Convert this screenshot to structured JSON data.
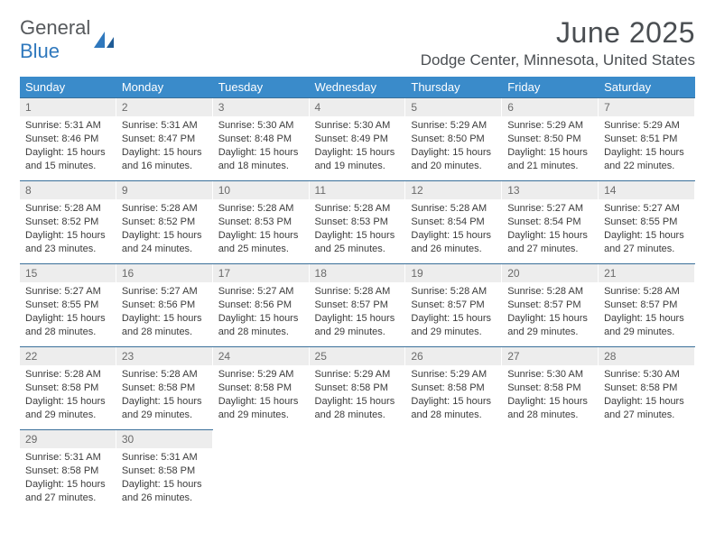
{
  "logo": {
    "text1": "General",
    "text2": "Blue"
  },
  "title": {
    "month": "June 2025",
    "location": "Dodge Center, Minnesota, United States"
  },
  "colors": {
    "header_bg": "#3a8bca",
    "header_text": "#ffffff",
    "row_border": "#3a6f99",
    "daynum_bg": "#ededed",
    "daynum_text": "#6a6a6a",
    "body_text": "#3b3b3b",
    "logo_gray": "#56595c",
    "logo_blue": "#2f78bd",
    "title_text": "#4a4e52"
  },
  "weekdays": [
    "Sunday",
    "Monday",
    "Tuesday",
    "Wednesday",
    "Thursday",
    "Friday",
    "Saturday"
  ],
  "weeks": [
    [
      {
        "num": "1",
        "sunrise": "Sunrise: 5:31 AM",
        "sunset": "Sunset: 8:46 PM",
        "daylight": "Daylight: 15 hours and 15 minutes."
      },
      {
        "num": "2",
        "sunrise": "Sunrise: 5:31 AM",
        "sunset": "Sunset: 8:47 PM",
        "daylight": "Daylight: 15 hours and 16 minutes."
      },
      {
        "num": "3",
        "sunrise": "Sunrise: 5:30 AM",
        "sunset": "Sunset: 8:48 PM",
        "daylight": "Daylight: 15 hours and 18 minutes."
      },
      {
        "num": "4",
        "sunrise": "Sunrise: 5:30 AM",
        "sunset": "Sunset: 8:49 PM",
        "daylight": "Daylight: 15 hours and 19 minutes."
      },
      {
        "num": "5",
        "sunrise": "Sunrise: 5:29 AM",
        "sunset": "Sunset: 8:50 PM",
        "daylight": "Daylight: 15 hours and 20 minutes."
      },
      {
        "num": "6",
        "sunrise": "Sunrise: 5:29 AM",
        "sunset": "Sunset: 8:50 PM",
        "daylight": "Daylight: 15 hours and 21 minutes."
      },
      {
        "num": "7",
        "sunrise": "Sunrise: 5:29 AM",
        "sunset": "Sunset: 8:51 PM",
        "daylight": "Daylight: 15 hours and 22 minutes."
      }
    ],
    [
      {
        "num": "8",
        "sunrise": "Sunrise: 5:28 AM",
        "sunset": "Sunset: 8:52 PM",
        "daylight": "Daylight: 15 hours and 23 minutes."
      },
      {
        "num": "9",
        "sunrise": "Sunrise: 5:28 AM",
        "sunset": "Sunset: 8:52 PM",
        "daylight": "Daylight: 15 hours and 24 minutes."
      },
      {
        "num": "10",
        "sunrise": "Sunrise: 5:28 AM",
        "sunset": "Sunset: 8:53 PM",
        "daylight": "Daylight: 15 hours and 25 minutes."
      },
      {
        "num": "11",
        "sunrise": "Sunrise: 5:28 AM",
        "sunset": "Sunset: 8:53 PM",
        "daylight": "Daylight: 15 hours and 25 minutes."
      },
      {
        "num": "12",
        "sunrise": "Sunrise: 5:28 AM",
        "sunset": "Sunset: 8:54 PM",
        "daylight": "Daylight: 15 hours and 26 minutes."
      },
      {
        "num": "13",
        "sunrise": "Sunrise: 5:27 AM",
        "sunset": "Sunset: 8:54 PM",
        "daylight": "Daylight: 15 hours and 27 minutes."
      },
      {
        "num": "14",
        "sunrise": "Sunrise: 5:27 AM",
        "sunset": "Sunset: 8:55 PM",
        "daylight": "Daylight: 15 hours and 27 minutes."
      }
    ],
    [
      {
        "num": "15",
        "sunrise": "Sunrise: 5:27 AM",
        "sunset": "Sunset: 8:55 PM",
        "daylight": "Daylight: 15 hours and 28 minutes."
      },
      {
        "num": "16",
        "sunrise": "Sunrise: 5:27 AM",
        "sunset": "Sunset: 8:56 PM",
        "daylight": "Daylight: 15 hours and 28 minutes."
      },
      {
        "num": "17",
        "sunrise": "Sunrise: 5:27 AM",
        "sunset": "Sunset: 8:56 PM",
        "daylight": "Daylight: 15 hours and 28 minutes."
      },
      {
        "num": "18",
        "sunrise": "Sunrise: 5:28 AM",
        "sunset": "Sunset: 8:57 PM",
        "daylight": "Daylight: 15 hours and 29 minutes."
      },
      {
        "num": "19",
        "sunrise": "Sunrise: 5:28 AM",
        "sunset": "Sunset: 8:57 PM",
        "daylight": "Daylight: 15 hours and 29 minutes."
      },
      {
        "num": "20",
        "sunrise": "Sunrise: 5:28 AM",
        "sunset": "Sunset: 8:57 PM",
        "daylight": "Daylight: 15 hours and 29 minutes."
      },
      {
        "num": "21",
        "sunrise": "Sunrise: 5:28 AM",
        "sunset": "Sunset: 8:57 PM",
        "daylight": "Daylight: 15 hours and 29 minutes."
      }
    ],
    [
      {
        "num": "22",
        "sunrise": "Sunrise: 5:28 AM",
        "sunset": "Sunset: 8:58 PM",
        "daylight": "Daylight: 15 hours and 29 minutes."
      },
      {
        "num": "23",
        "sunrise": "Sunrise: 5:28 AM",
        "sunset": "Sunset: 8:58 PM",
        "daylight": "Daylight: 15 hours and 29 minutes."
      },
      {
        "num": "24",
        "sunrise": "Sunrise: 5:29 AM",
        "sunset": "Sunset: 8:58 PM",
        "daylight": "Daylight: 15 hours and 29 minutes."
      },
      {
        "num": "25",
        "sunrise": "Sunrise: 5:29 AM",
        "sunset": "Sunset: 8:58 PM",
        "daylight": "Daylight: 15 hours and 28 minutes."
      },
      {
        "num": "26",
        "sunrise": "Sunrise: 5:29 AM",
        "sunset": "Sunset: 8:58 PM",
        "daylight": "Daylight: 15 hours and 28 minutes."
      },
      {
        "num": "27",
        "sunrise": "Sunrise: 5:30 AM",
        "sunset": "Sunset: 8:58 PM",
        "daylight": "Daylight: 15 hours and 28 minutes."
      },
      {
        "num": "28",
        "sunrise": "Sunrise: 5:30 AM",
        "sunset": "Sunset: 8:58 PM",
        "daylight": "Daylight: 15 hours and 27 minutes."
      }
    ],
    [
      {
        "num": "29",
        "sunrise": "Sunrise: 5:31 AM",
        "sunset": "Sunset: 8:58 PM",
        "daylight": "Daylight: 15 hours and 27 minutes."
      },
      {
        "num": "30",
        "sunrise": "Sunrise: 5:31 AM",
        "sunset": "Sunset: 8:58 PM",
        "daylight": "Daylight: 15 hours and 26 minutes."
      },
      null,
      null,
      null,
      null,
      null
    ]
  ]
}
